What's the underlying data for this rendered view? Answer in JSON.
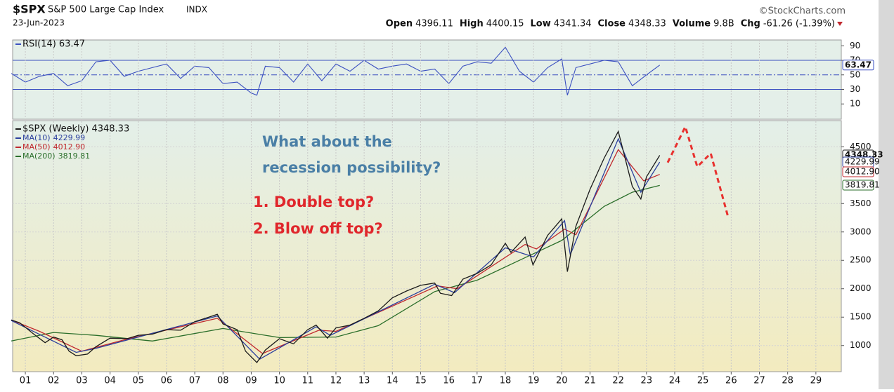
{
  "header": {
    "symbol": "$SPX",
    "name": "S&P 500 Large Cap Index",
    "exchange": "INDX",
    "date": "23-Jun-2023",
    "source": "©StockCharts.com",
    "quote": [
      {
        "label": "Open",
        "value": "4396.11"
      },
      {
        "label": "High",
        "value": "4400.15"
      },
      {
        "label": "Low",
        "value": "4341.34"
      },
      {
        "label": "Close",
        "value": "4348.33"
      },
      {
        "label": "Volume",
        "value": "9.8B"
      },
      {
        "label": "Chg",
        "value": "-61.26 (-1.39%)"
      }
    ]
  },
  "chart_data": [
    {
      "type": "line",
      "panel": "rsi",
      "background": "#e4efe9",
      "xlim": [
        2000.55,
        2029.9
      ],
      "ylim": [
        -11,
        98
      ],
      "yticks": [
        10,
        30,
        50,
        70,
        90
      ],
      "bands": [
        30,
        70
      ],
      "midline": 50,
      "series": [
        {
          "name": "RSI(14)",
          "last": "63.47",
          "color": "#3a4fc0",
          "x": [
            2000.5,
            2001,
            2001.5,
            2002,
            2002.5,
            2003,
            2003.5,
            2004,
            2004.5,
            2005,
            2005.5,
            2006,
            2006.5,
            2007,
            2007.5,
            2008,
            2008.5,
            2009,
            2009.2,
            2009.5,
            2010,
            2010.5,
            2011,
            2011.5,
            2012,
            2012.5,
            2013,
            2013.5,
            2014,
            2014.5,
            2015,
            2015.5,
            2016,
            2016.5,
            2017,
            2017.5,
            2018,
            2018.5,
            2019,
            2019.5,
            2020,
            2020.2,
            2020.5,
            2021,
            2021.5,
            2022,
            2022.5,
            2023,
            2023.47
          ],
          "values": [
            52,
            40,
            48,
            52,
            35,
            42,
            68,
            70,
            48,
            55,
            60,
            65,
            45,
            62,
            60,
            38,
            40,
            25,
            22,
            62,
            60,
            40,
            65,
            42,
            65,
            55,
            70,
            58,
            62,
            65,
            55,
            58,
            38,
            62,
            68,
            66,
            88,
            55,
            40,
            60,
            72,
            22,
            60,
            65,
            70,
            68,
            35,
            50,
            63.47
          ]
        }
      ]
    },
    {
      "type": "line",
      "panel": "price",
      "xlim": [
        2000.55,
        2029.9
      ],
      "ylim": [
        540,
        4960
      ],
      "yticks": [
        1000,
        1500,
        2000,
        2500,
        3000,
        3500,
        4500
      ],
      "xticks": [
        {
          "value": 2001,
          "label": "01"
        },
        {
          "value": 2002,
          "label": "02"
        },
        {
          "value": 2003,
          "label": "03"
        },
        {
          "value": 2004,
          "label": "04"
        },
        {
          "value": 2005,
          "label": "05"
        },
        {
          "value": 2006,
          "label": "06"
        },
        {
          "value": 2007,
          "label": "07"
        },
        {
          "value": 2008,
          "label": "08"
        },
        {
          "value": 2009,
          "label": "09"
        },
        {
          "value": 2010,
          "label": "10"
        },
        {
          "value": 2011,
          "label": "11"
        },
        {
          "value": 2012,
          "label": "12"
        },
        {
          "value": 2013,
          "label": "13"
        },
        {
          "value": 2014,
          "label": "14"
        },
        {
          "value": 2015,
          "label": "15"
        },
        {
          "value": 2016,
          "label": "16"
        },
        {
          "value": 2017,
          "label": "17"
        },
        {
          "value": 2018,
          "label": "18"
        },
        {
          "value": 2019,
          "label": "19"
        },
        {
          "value": 2020,
          "label": "20"
        },
        {
          "value": 2021,
          "label": "21"
        },
        {
          "value": 2022,
          "label": "22"
        },
        {
          "value": 2023,
          "label": "23"
        },
        {
          "value": 2024,
          "label": "24"
        },
        {
          "value": 2025,
          "label": "25"
        },
        {
          "value": 2026,
          "label": "26"
        },
        {
          "value": 2027,
          "label": "27"
        },
        {
          "value": 2028,
          "label": "28"
        },
        {
          "value": 2029,
          "label": "29"
        }
      ],
      "grid": true,
      "annotations": [
        {
          "text": "What about the",
          "color": "#4a7fa6"
        },
        {
          "text": "recession possibility?",
          "color": "#4a7fa6"
        },
        {
          "text": "1. Double top?",
          "color": "#e0262b"
        },
        {
          "text": "2. Blow off top?",
          "color": "#e0262b"
        }
      ],
      "series": [
        {
          "name": "MA(200)",
          "last": "3819.81",
          "color": "#2a6e2a",
          "x": [
            2000.5,
            2002.0,
            2003.5,
            2005.5,
            2008.0,
            2010.0,
            2012.0,
            2013.5,
            2015.5,
            2017.0,
            2018.5,
            2020.0,
            2021.5,
            2022.5,
            2023.47
          ],
          "values": [
            1080,
            1230,
            1180,
            1080,
            1300,
            1140,
            1150,
            1350,
            1950,
            2150,
            2500,
            2850,
            3450,
            3700,
            3819.81
          ]
        },
        {
          "name": "MA(50)",
          "last": "4012.90",
          "color": "#c0282e",
          "x": [
            2000.5,
            2001.5,
            2003.0,
            2004.5,
            2007.8,
            2009.4,
            2011.4,
            2012.0,
            2015.6,
            2016.3,
            2018.7,
            2019.1,
            2020.1,
            2020.5,
            2022.0,
            2022.9,
            2023.47
          ],
          "values": [
            1450,
            1250,
            900,
            1100,
            1480,
            860,
            1270,
            1250,
            2050,
            2000,
            2780,
            2700,
            3050,
            2950,
            4450,
            3900,
            4012.9
          ]
        },
        {
          "name": "MA(10)",
          "last": "4229.99",
          "color": "#2b3f9e",
          "x": [
            2000.5,
            2002.8,
            2003.5,
            2007.8,
            2009.3,
            2011.3,
            2011.8,
            2015.5,
            2016.2,
            2018.0,
            2019.0,
            2020.1,
            2020.3,
            2022.0,
            2022.8,
            2023.47
          ],
          "values": [
            1440,
            880,
            950,
            1520,
            760,
            1330,
            1180,
            2080,
            1930,
            2720,
            2560,
            3200,
            2600,
            4640,
            3700,
            4229.99
          ]
        },
        {
          "name": "$SPX (Weekly)",
          "last": "4348.33",
          "color": "#1a1a1a",
          "x": [
            2000.5,
            2000.8,
            2001.0,
            2001.3,
            2001.7,
            2002.0,
            2002.3,
            2002.55,
            2002.8,
            2003.2,
            2003.5,
            2004.0,
            2004.6,
            2005.0,
            2005.5,
            2006.0,
            2006.5,
            2007.0,
            2007.5,
            2007.8,
            2008.0,
            2008.5,
            2008.8,
            2009.2,
            2009.5,
            2010.0,
            2010.5,
            2011.0,
            2011.3,
            2011.7,
            2012.0,
            2012.5,
            2013.0,
            2013.5,
            2014.0,
            2014.5,
            2015.0,
            2015.5,
            2015.7,
            2016.1,
            2016.5,
            2017.0,
            2017.5,
            2018.0,
            2018.2,
            2018.7,
            2018.98,
            2019.5,
            2020.0,
            2020.2,
            2020.5,
            2021.0,
            2021.5,
            2022.0,
            2022.5,
            2022.8,
            2023.0,
            2023.47
          ],
          "values": [
            1450,
            1400,
            1320,
            1200,
            1050,
            1150,
            1100,
            900,
            820,
            850,
            980,
            1130,
            1120,
            1180,
            1200,
            1280,
            1270,
            1420,
            1500,
            1550,
            1380,
            1280,
            900,
            700,
            920,
            1120,
            1030,
            1280,
            1360,
            1130,
            1310,
            1360,
            1480,
            1610,
            1840,
            1960,
            2060,
            2100,
            1920,
            1880,
            2170,
            2270,
            2420,
            2800,
            2640,
            2910,
            2420,
            2940,
            3230,
            2300,
            3100,
            3750,
            4300,
            4770,
            3800,
            3580,
            3970,
            4348.33
          ]
        },
        {
          "color": "#e8312f",
          "dashed": true,
          "x": [
            2023.75,
            2024.375,
            2024.8,
            2025.275,
            2025.9
          ],
          "values": [
            4222,
            4852,
            4148,
            4383,
            3247
          ]
        }
      ]
    }
  ]
}
